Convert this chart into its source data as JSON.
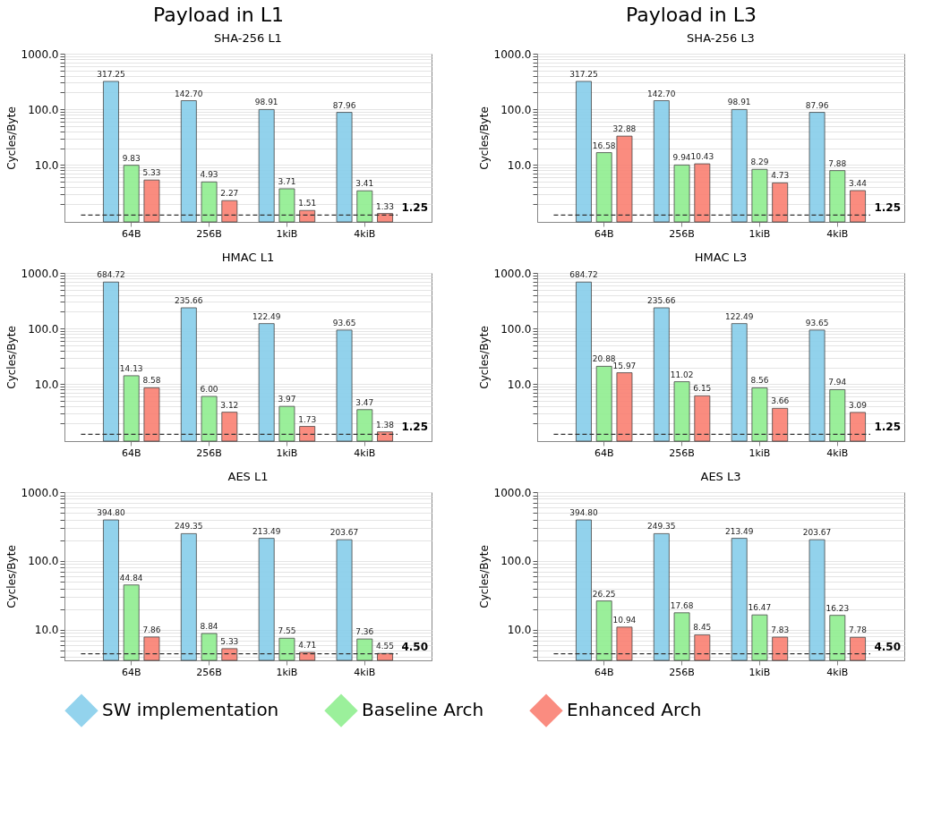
{
  "chart_data": [
    {
      "type": "bar",
      "title": "SHA-256 L1",
      "ylabel": "Cycles/Byte",
      "annotations": [
        "Payload in L1"
      ],
      "categories": [
        "64B",
        "256B",
        "1kiB",
        "4kiB"
      ],
      "log": true,
      "grid": "y",
      "legend": "bottom",
      "ylim": [
        0.94,
        1000
      ],
      "yticks": [
        {
          "value": 2,
          "label": null
        },
        {
          "value": 3,
          "label": null
        },
        {
          "value": 4,
          "label": null
        },
        {
          "value": 5,
          "label": null
        },
        {
          "value": 6,
          "label": null
        },
        {
          "value": 7,
          "label": null
        },
        {
          "value": 8,
          "label": null
        },
        {
          "value": 9,
          "label": null
        },
        {
          "value": 10,
          "label": "10.0"
        },
        {
          "value": 20,
          "label": null
        },
        {
          "value": 30,
          "label": null
        },
        {
          "value": 40,
          "label": null
        },
        {
          "value": 50,
          "label": null
        },
        {
          "value": 60,
          "label": null
        },
        {
          "value": 70,
          "label": null
        },
        {
          "value": 80,
          "label": null
        },
        {
          "value": 90,
          "label": null
        },
        {
          "value": 100,
          "label": "100.0"
        },
        {
          "value": 200,
          "label": null
        },
        {
          "value": 300,
          "label": null
        },
        {
          "value": 400,
          "label": null
        },
        {
          "value": 500,
          "label": null
        },
        {
          "value": 600,
          "label": null
        },
        {
          "value": 700,
          "label": null
        },
        {
          "value": 800,
          "label": null
        },
        {
          "value": 900,
          "label": null
        },
        {
          "value": 1000,
          "label": "1000.0"
        }
      ],
      "ref_lines": [
        {
          "axis": "y",
          "value": 1.25,
          "label": "1.25",
          "line_style": "dashed",
          "color": "#333333"
        }
      ],
      "series": [
        {
          "name": "SW implementation",
          "color": "#87ceeb",
          "values": [
            317.25,
            142.7,
            98.91,
            87.96
          ],
          "value_labels": [
            "317.25",
            "142.70",
            "98.91",
            "87.96"
          ]
        },
        {
          "name": "Baseline Arch",
          "color": "#90ee90",
          "values": [
            9.83,
            4.93,
            3.71,
            3.41
          ],
          "value_labels": [
            "9.83",
            "4.93",
            "3.71",
            "3.41"
          ]
        },
        {
          "name": "Enhanced Arch",
          "color": "#fa8072",
          "values": [
            5.33,
            2.27,
            1.51,
            1.33
          ],
          "value_labels": [
            "5.33",
            "2.27",
            "1.51",
            "1.33"
          ]
        }
      ]
    },
    {
      "type": "bar",
      "title": "HMAC L1",
      "ylabel": "Cycles/Byte",
      "categories": [
        "64B",
        "256B",
        "1kiB",
        "4kiB"
      ],
      "log": true,
      "grid": "y",
      "legend": "bottom",
      "ylim": [
        0.94,
        1000
      ],
      "yticks": [
        {
          "value": 2,
          "label": null
        },
        {
          "value": 3,
          "label": null
        },
        {
          "value": 4,
          "label": null
        },
        {
          "value": 5,
          "label": null
        },
        {
          "value": 6,
          "label": null
        },
        {
          "value": 7,
          "label": null
        },
        {
          "value": 8,
          "label": null
        },
        {
          "value": 9,
          "label": null
        },
        {
          "value": 10,
          "label": "10.0"
        },
        {
          "value": 20,
          "label": null
        },
        {
          "value": 30,
          "label": null
        },
        {
          "value": 40,
          "label": null
        },
        {
          "value": 50,
          "label": null
        },
        {
          "value": 60,
          "label": null
        },
        {
          "value": 70,
          "label": null
        },
        {
          "value": 80,
          "label": null
        },
        {
          "value": 90,
          "label": null
        },
        {
          "value": 100,
          "label": "100.0"
        },
        {
          "value": 200,
          "label": null
        },
        {
          "value": 300,
          "label": null
        },
        {
          "value": 400,
          "label": null
        },
        {
          "value": 500,
          "label": null
        },
        {
          "value": 600,
          "label": null
        },
        {
          "value": 700,
          "label": null
        },
        {
          "value": 800,
          "label": null
        },
        {
          "value": 900,
          "label": null
        },
        {
          "value": 1000,
          "label": "1000.0"
        }
      ],
      "ref_lines": [
        {
          "axis": "y",
          "value": 1.25,
          "label": "1.25",
          "line_style": "dashed",
          "color": "#333333"
        }
      ],
      "series": [
        {
          "name": "SW implementation",
          "color": "#87ceeb",
          "values": [
            684.72,
            235.66,
            122.49,
            93.65
          ],
          "value_labels": [
            "684.72",
            "235.66",
            "122.49",
            "93.65"
          ]
        },
        {
          "name": "Baseline Arch",
          "color": "#90ee90",
          "values": [
            14.13,
            6.0,
            3.97,
            3.47
          ],
          "value_labels": [
            "14.13",
            "6.00",
            "3.97",
            "3.47"
          ]
        },
        {
          "name": "Enhanced Arch",
          "color": "#fa8072",
          "values": [
            8.58,
            3.12,
            1.73,
            1.38
          ],
          "value_labels": [
            "8.58",
            "3.12",
            "1.73",
            "1.38"
          ]
        }
      ]
    },
    {
      "type": "bar",
      "title": "AES L1",
      "ylabel": "Cycles/Byte",
      "categories": [
        "64B",
        "256B",
        "1kiB",
        "4kiB"
      ],
      "log": true,
      "grid": "y",
      "legend": "bottom",
      "ylim": [
        3.6,
        1000
      ],
      "yticks": [
        {
          "value": 4,
          "label": null
        },
        {
          "value": 5,
          "label": null
        },
        {
          "value": 6,
          "label": null
        },
        {
          "value": 7,
          "label": null
        },
        {
          "value": 8,
          "label": null
        },
        {
          "value": 9,
          "label": null
        },
        {
          "value": 10,
          "label": "10.0"
        },
        {
          "value": 20,
          "label": null
        },
        {
          "value": 30,
          "label": null
        },
        {
          "value": 40,
          "label": null
        },
        {
          "value": 50,
          "label": null
        },
        {
          "value": 60,
          "label": null
        },
        {
          "value": 70,
          "label": null
        },
        {
          "value": 80,
          "label": null
        },
        {
          "value": 90,
          "label": null
        },
        {
          "value": 100,
          "label": "100.0"
        },
        {
          "value": 200,
          "label": null
        },
        {
          "value": 300,
          "label": null
        },
        {
          "value": 400,
          "label": null
        },
        {
          "value": 500,
          "label": null
        },
        {
          "value": 600,
          "label": null
        },
        {
          "value": 700,
          "label": null
        },
        {
          "value": 800,
          "label": null
        },
        {
          "value": 900,
          "label": null
        },
        {
          "value": 1000,
          "label": "1000.0"
        }
      ],
      "ref_lines": [
        {
          "axis": "y",
          "value": 4.5,
          "label": "4.50",
          "line_style": "dashed",
          "color": "#333333"
        }
      ],
      "series": [
        {
          "name": "SW implementation",
          "color": "#87ceeb",
          "values": [
            394.8,
            249.35,
            213.49,
            203.67
          ],
          "value_labels": [
            "394.80",
            "249.35",
            "213.49",
            "203.67"
          ]
        },
        {
          "name": "Baseline Arch",
          "color": "#90ee90",
          "values": [
            44.84,
            8.84,
            7.55,
            7.36
          ],
          "value_labels": [
            "44.84",
            "8.84",
            "7.55",
            "7.36"
          ]
        },
        {
          "name": "Enhanced Arch",
          "color": "#fa8072",
          "values": [
            7.86,
            5.33,
            4.71,
            4.55
          ],
          "value_labels": [
            "7.86",
            "5.33",
            "4.71",
            "4.55"
          ]
        }
      ]
    },
    {
      "type": "bar",
      "title": "SHA-256 L3",
      "ylabel": "Cycles/Byte",
      "annotations": [
        "Payload in L3"
      ],
      "categories": [
        "64B",
        "256B",
        "1kiB",
        "4kiB"
      ],
      "log": true,
      "grid": "y",
      "legend": "bottom",
      "ylim": [
        0.94,
        1000
      ],
      "yticks": [
        {
          "value": 2,
          "label": null
        },
        {
          "value": 3,
          "label": null
        },
        {
          "value": 4,
          "label": null
        },
        {
          "value": 5,
          "label": null
        },
        {
          "value": 6,
          "label": null
        },
        {
          "value": 7,
          "label": null
        },
        {
          "value": 8,
          "label": null
        },
        {
          "value": 9,
          "label": null
        },
        {
          "value": 10,
          "label": "10.0"
        },
        {
          "value": 20,
          "label": null
        },
        {
          "value": 30,
          "label": null
        },
        {
          "value": 40,
          "label": null
        },
        {
          "value": 50,
          "label": null
        },
        {
          "value": 60,
          "label": null
        },
        {
          "value": 70,
          "label": null
        },
        {
          "value": 80,
          "label": null
        },
        {
          "value": 90,
          "label": null
        },
        {
          "value": 100,
          "label": "100.0"
        },
        {
          "value": 200,
          "label": null
        },
        {
          "value": 300,
          "label": null
        },
        {
          "value": 400,
          "label": null
        },
        {
          "value": 500,
          "label": null
        },
        {
          "value": 600,
          "label": null
        },
        {
          "value": 700,
          "label": null
        },
        {
          "value": 800,
          "label": null
        },
        {
          "value": 900,
          "label": null
        },
        {
          "value": 1000,
          "label": "1000.0"
        }
      ],
      "ref_lines": [
        {
          "axis": "y",
          "value": 1.25,
          "label": "1.25",
          "line_style": "dashed",
          "color": "#333333"
        }
      ],
      "series": [
        {
          "name": "SW implementation",
          "color": "#87ceeb",
          "values": [
            317.25,
            142.7,
            98.91,
            87.96
          ],
          "value_labels": [
            "317.25",
            "142.70",
            "98.91",
            "87.96"
          ]
        },
        {
          "name": "Baseline Arch",
          "color": "#90ee90",
          "values": [
            16.58,
            9.94,
            8.29,
            7.88
          ],
          "value_labels": [
            "16.58",
            "9.94",
            "8.29",
            "7.88"
          ]
        },
        {
          "name": "Enhanced Arch",
          "color": "#fa8072",
          "values": [
            32.88,
            10.43,
            4.73,
            3.44
          ],
          "value_labels": [
            "32.88",
            "10.43",
            "4.73",
            "3.44"
          ]
        }
      ]
    },
    {
      "type": "bar",
      "title": "HMAC L3",
      "ylabel": "Cycles/Byte",
      "categories": [
        "64B",
        "256B",
        "1kiB",
        "4kiB"
      ],
      "log": true,
      "grid": "y",
      "legend": "bottom",
      "ylim": [
        0.94,
        1000
      ],
      "yticks": [
        {
          "value": 2,
          "label": null
        },
        {
          "value": 3,
          "label": null
        },
        {
          "value": 4,
          "label": null
        },
        {
          "value": 5,
          "label": null
        },
        {
          "value": 6,
          "label": null
        },
        {
          "value": 7,
          "label": null
        },
        {
          "value": 8,
          "label": null
        },
        {
          "value": 9,
          "label": null
        },
        {
          "value": 10,
          "label": "10.0"
        },
        {
          "value": 20,
          "label": null
        },
        {
          "value": 30,
          "label": null
        },
        {
          "value": 40,
          "label": null
        },
        {
          "value": 50,
          "label": null
        },
        {
          "value": 60,
          "label": null
        },
        {
          "value": 70,
          "label": null
        },
        {
          "value": 80,
          "label": null
        },
        {
          "value": 90,
          "label": null
        },
        {
          "value": 100,
          "label": "100.0"
        },
        {
          "value": 200,
          "label": null
        },
        {
          "value": 300,
          "label": null
        },
        {
          "value": 400,
          "label": null
        },
        {
          "value": 500,
          "label": null
        },
        {
          "value": 600,
          "label": null
        },
        {
          "value": 700,
          "label": null
        },
        {
          "value": 800,
          "label": null
        },
        {
          "value": 900,
          "label": null
        },
        {
          "value": 1000,
          "label": "1000.0"
        }
      ],
      "ref_lines": [
        {
          "axis": "y",
          "value": 1.25,
          "label": "1.25",
          "line_style": "dashed",
          "color": "#333333"
        }
      ],
      "series": [
        {
          "name": "SW implementation",
          "color": "#87ceeb",
          "values": [
            684.72,
            235.66,
            122.49,
            93.65
          ],
          "value_labels": [
            "684.72",
            "235.66",
            "122.49",
            "93.65"
          ]
        },
        {
          "name": "Baseline Arch",
          "color": "#90ee90",
          "values": [
            20.88,
            11.02,
            8.56,
            7.94
          ],
          "value_labels": [
            "20.88",
            "11.02",
            "8.56",
            "7.94"
          ]
        },
        {
          "name": "Enhanced Arch",
          "color": "#fa8072",
          "values": [
            15.97,
            6.15,
            3.66,
            3.09
          ],
          "value_labels": [
            "15.97",
            "6.15",
            "3.66",
            "3.09"
          ]
        }
      ]
    },
    {
      "type": "bar",
      "title": "AES L3",
      "ylabel": "Cycles/Byte",
      "categories": [
        "64B",
        "256B",
        "1kiB",
        "4kiB"
      ],
      "log": true,
      "grid": "y",
      "legend": "bottom",
      "ylim": [
        3.6,
        1000
      ],
      "yticks": [
        {
          "value": 4,
          "label": null
        },
        {
          "value": 5,
          "label": null
        },
        {
          "value": 6,
          "label": null
        },
        {
          "value": 7,
          "label": null
        },
        {
          "value": 8,
          "label": null
        },
        {
          "value": 9,
          "label": null
        },
        {
          "value": 10,
          "label": "10.0"
        },
        {
          "value": 20,
          "label": null
        },
        {
          "value": 30,
          "label": null
        },
        {
          "value": 40,
          "label": null
        },
        {
          "value": 50,
          "label": null
        },
        {
          "value": 60,
          "label": null
        },
        {
          "value": 70,
          "label": null
        },
        {
          "value": 80,
          "label": null
        },
        {
          "value": 90,
          "label": null
        },
        {
          "value": 100,
          "label": "100.0"
        },
        {
          "value": 200,
          "label": null
        },
        {
          "value": 300,
          "label": null
        },
        {
          "value": 400,
          "label": null
        },
        {
          "value": 500,
          "label": null
        },
        {
          "value": 600,
          "label": null
        },
        {
          "value": 700,
          "label": null
        },
        {
          "value": 800,
          "label": null
        },
        {
          "value": 900,
          "label": null
        },
        {
          "value": 1000,
          "label": "1000.0"
        }
      ],
      "ref_lines": [
        {
          "axis": "y",
          "value": 4.5,
          "label": "4.50",
          "line_style": "dashed",
          "color": "#333333"
        }
      ],
      "series": [
        {
          "name": "SW implementation",
          "color": "#87ceeb",
          "values": [
            394.8,
            249.35,
            213.49,
            203.67
          ],
          "value_labels": [
            "394.80",
            "249.35",
            "213.49",
            "203.67"
          ]
        },
        {
          "name": "Baseline Arch",
          "color": "#90ee90",
          "values": [
            26.25,
            17.68,
            16.47,
            16.23
          ],
          "value_labels": [
            "26.25",
            "17.68",
            "16.47",
            "16.23"
          ]
        },
        {
          "name": "Enhanced Arch",
          "color": "#fa8072",
          "values": [
            10.94,
            8.45,
            7.83,
            7.78
          ],
          "value_labels": [
            "10.94",
            "8.45",
            "7.83",
            "7.78"
          ]
        }
      ]
    }
  ]
}
